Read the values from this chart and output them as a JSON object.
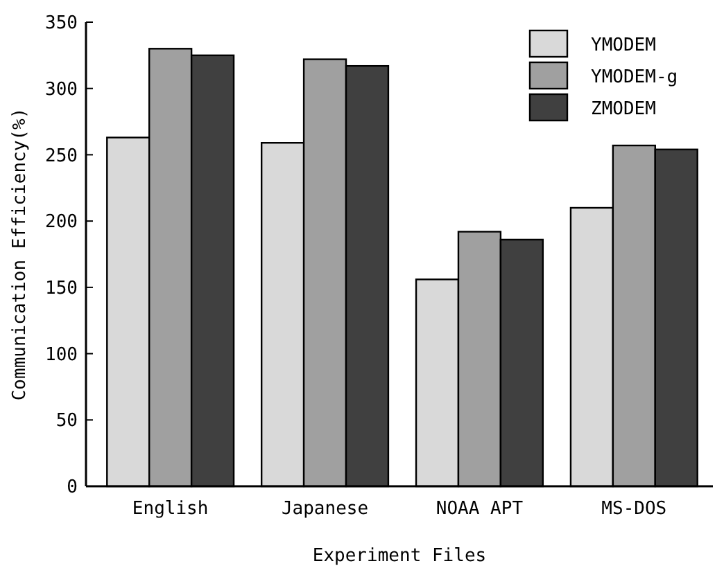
{
  "chart_data": {
    "type": "bar",
    "xlabel": "Experiment Files",
    "ylabel": "Communication Efficiency(%)",
    "categories": [
      "English",
      "Japanese",
      "NOAA APT",
      "MS-DOS"
    ],
    "series": [
      {
        "name": "YMODEM",
        "color": "#d9d9d9",
        "values": [
          263,
          259,
          156,
          210
        ]
      },
      {
        "name": "YMODEM-g",
        "color": "#a0a0a0",
        "values": [
          330,
          322,
          192,
          257
        ]
      },
      {
        "name": "ZMODEM",
        "color": "#404040",
        "values": [
          325,
          317,
          186,
          254
        ]
      }
    ],
    "ylim": [
      0,
      350
    ],
    "yticks": [
      0,
      50,
      100,
      150,
      200,
      250,
      300,
      350
    ],
    "legend": "top right",
    "grid": false
  }
}
